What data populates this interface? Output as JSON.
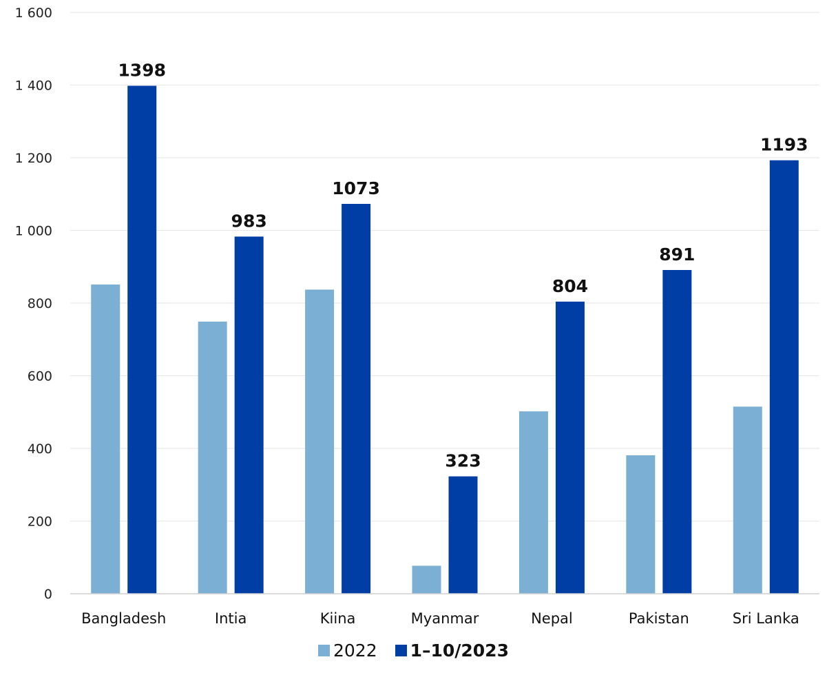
{
  "chart_data": {
    "type": "bar",
    "categories": [
      "Bangladesh",
      "Intia",
      "Kiina",
      "Myanmar",
      "Nepal",
      "Pakistan",
      "Sri Lanka"
    ],
    "series": [
      {
        "name": "2022",
        "values": [
          851,
          749,
          837,
          77,
          502,
          381,
          515
        ],
        "color": "#7bafd4",
        "labels_shown": false
      },
      {
        "name": "1–10/2023",
        "values": [
          1398,
          983,
          1073,
          323,
          804,
          891,
          1193
        ],
        "color": "#003ea5",
        "labels_shown": true
      }
    ],
    "title": "",
    "xlabel": "",
    "ylabel": "",
    "ylim": [
      0,
      1600
    ],
    "yticks": [
      0,
      200,
      400,
      600,
      800,
      1000,
      1200,
      1400,
      1600
    ],
    "ytick_labels": [
      "0",
      "200",
      "400",
      "600",
      "800",
      "1 000",
      "1 200",
      "1 400",
      "1 600"
    ],
    "grid": true,
    "legend_position": "bottom"
  }
}
